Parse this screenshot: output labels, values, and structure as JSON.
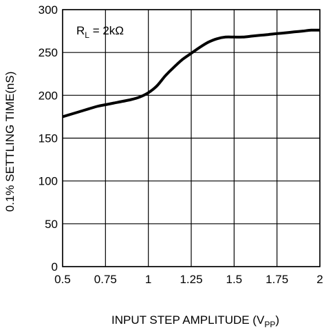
{
  "chart_data": {
    "type": "line",
    "title": "",
    "xlabel": "INPUT STEP AMPLITUDE (V",
    "xlabel_sub": "PP",
    "xlabel_close": ")",
    "ylabel": "0.1% SETTLING TIME(nS)",
    "xlim": [
      0.5,
      2
    ],
    "ylim": [
      0,
      300
    ],
    "x_ticks": [
      0.5,
      0.75,
      1,
      1.25,
      1.5,
      1.75,
      2
    ],
    "x_tick_labels": [
      "0.5",
      "0.75",
      "1",
      "1.25",
      "1.5",
      "1.75",
      "2"
    ],
    "y_ticks": [
      0,
      50,
      100,
      150,
      200,
      250,
      300
    ],
    "y_tick_labels": [
      "0",
      "50",
      "100",
      "150",
      "200",
      "250",
      "300"
    ],
    "grid": true,
    "annotation": {
      "main": "R",
      "sub": "L",
      "rest": " = 2kΩ"
    },
    "series": [
      {
        "color": "#000000",
        "x": [
          0.5,
          0.6,
          0.7,
          0.75,
          0.8,
          0.9,
          0.95,
          1.0,
          1.05,
          1.1,
          1.15,
          1.2,
          1.25,
          1.3,
          1.35,
          1.4,
          1.45,
          1.5,
          1.55,
          1.6,
          1.65,
          1.7,
          1.75,
          1.8,
          1.85,
          1.9,
          1.95,
          2.0
        ],
        "y": [
          175,
          181,
          187,
          189,
          191,
          195,
          198,
          203,
          211,
          223,
          233,
          242,
          249,
          256,
          262,
          266,
          268,
          268,
          268,
          269,
          270,
          271,
          272,
          273,
          274,
          275,
          276,
          276
        ]
      }
    ]
  }
}
